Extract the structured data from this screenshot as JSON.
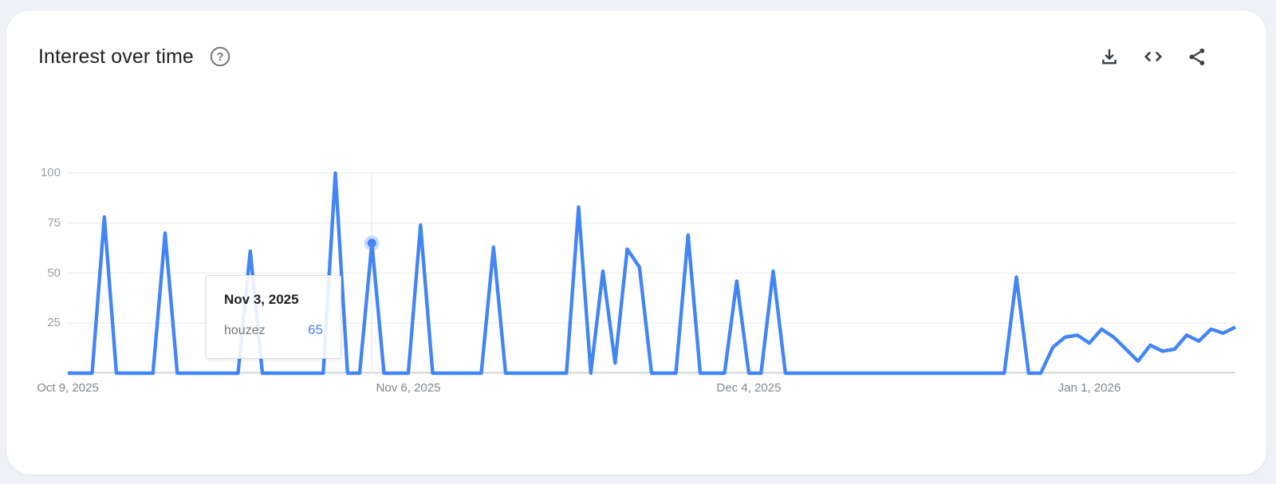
{
  "header": {
    "title": "Interest over time",
    "help_label": "help",
    "actions": {
      "download_label": "Download CSV",
      "embed_label": "Embed",
      "share_label": "Share"
    }
  },
  "tooltip": {
    "date": "Nov 3, 2025",
    "term": "houzez",
    "value": "65"
  },
  "colors": {
    "line": "#4285f4",
    "dot_halo": "rgba(66,133,244,0.28)",
    "grid": "#e8eaed",
    "crosshair": "#e8ecf0",
    "axis_baseline": "#c6c9cd",
    "y_axis_text": "#9aa0a6",
    "x_axis_text": "#80868b",
    "title_text": "#202124",
    "icon": "#3c4043",
    "help_icon": "#757575",
    "value_text": "#4285f4",
    "page_bg": "#eef1f5",
    "card_bg": "#ffffff"
  },
  "chart_data": {
    "type": "line",
    "interval": "daily",
    "start_date": "Oct 9, 2025",
    "end_date": "Jan 13, 2026",
    "title": "Interest over time",
    "xlabel": "",
    "ylabel": "",
    "ylim": [
      0,
      100
    ],
    "grid": true,
    "legend": false,
    "y_ticks": [
      100,
      75,
      50,
      25
    ],
    "x_ticks": [
      {
        "label": "Oct 9, 2025",
        "day_index": 0
      },
      {
        "label": "Nov 6, 2025",
        "day_index": 28
      },
      {
        "label": "Dec 4, 2025",
        "day_index": 56
      },
      {
        "label": "Jan 1, 2026",
        "day_index": 84
      }
    ],
    "series": [
      {
        "name": "houzez",
        "values": [
          0,
          0,
          0,
          78,
          0,
          0,
          0,
          0,
          70,
          0,
          0,
          0,
          0,
          0,
          0,
          61,
          0,
          0,
          0,
          0,
          0,
          0,
          100,
          0,
          0,
          65,
          0,
          0,
          0,
          74,
          0,
          0,
          0,
          0,
          0,
          63,
          0,
          0,
          0,
          0,
          0,
          0,
          83,
          0,
          51,
          5,
          62,
          53,
          0,
          0,
          0,
          69,
          0,
          0,
          0,
          46,
          0,
          0,
          51,
          0,
          0,
          0,
          0,
          0,
          0,
          0,
          0,
          0,
          0,
          0,
          0,
          0,
          0,
          0,
          0,
          0,
          0,
          0,
          48,
          0,
          0,
          13,
          18,
          19,
          15,
          22,
          18,
          12,
          6,
          14,
          11,
          12,
          19,
          16,
          22,
          20,
          23
        ]
      }
    ],
    "notable_points": [
      {
        "date": "Oct 12, 2025",
        "value": 78
      },
      {
        "date": "Oct 17, 2025",
        "value": 70
      },
      {
        "date": "Oct 24, 2025",
        "value": 61
      },
      {
        "date": "Oct 31, 2025",
        "value": 100
      },
      {
        "date": "Nov 3, 2025",
        "value": 65
      },
      {
        "date": "Nov 7, 2025",
        "value": 74
      },
      {
        "date": "Nov 13, 2025",
        "value": 63
      },
      {
        "date": "Nov 20, 2025",
        "value": 83
      },
      {
        "date": "Nov 22, 2025",
        "value": 51
      },
      {
        "date": "Nov 24, 2025",
        "value": 62
      },
      {
        "date": "Nov 25, 2025",
        "value": 53
      },
      {
        "date": "Nov 29, 2025",
        "value": 69
      },
      {
        "date": "Dec 3, 2025",
        "value": 46
      },
      {
        "date": "Dec 6, 2025",
        "value": 51
      },
      {
        "date": "Dec 26, 2025",
        "value": 48
      }
    ],
    "highlighted_point": {
      "date": "Nov 3, 2025",
      "day_index": 25,
      "value": 65
    }
  }
}
